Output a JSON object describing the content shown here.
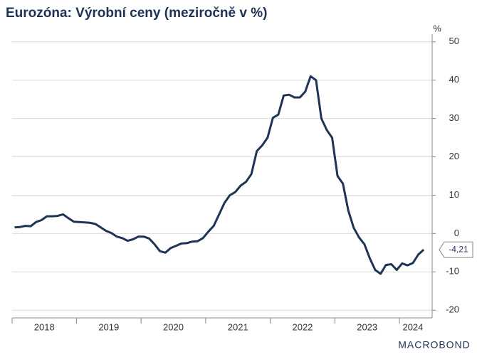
{
  "chart_data": {
    "type": "line",
    "title": "Eurozóna: Výrobní ceny (meziročně v %)",
    "y_unit": "%",
    "source_logo": "MACROBOND",
    "categories": [
      "2018",
      null,
      null,
      null,
      null,
      null,
      null,
      null,
      null,
      null,
      null,
      null,
      "2019",
      null,
      null,
      null,
      null,
      null,
      null,
      null,
      null,
      null,
      null,
      null,
      "2020",
      null,
      null,
      null,
      null,
      null,
      null,
      null,
      null,
      null,
      null,
      null,
      "2021",
      null,
      null,
      null,
      null,
      null,
      null,
      null,
      null,
      null,
      null,
      null,
      "2022",
      null,
      null,
      null,
      null,
      null,
      null,
      null,
      null,
      null,
      null,
      null,
      "2023",
      null,
      null,
      null,
      null,
      null,
      null,
      null,
      null,
      null,
      null,
      null,
      "2024",
      null,
      null,
      null,
      null
    ],
    "series": [
      {
        "name": "Výrobní ceny",
        "color": "#1f3356",
        "values": [
          1.6,
          1.7,
          2.0,
          1.9,
          3.0,
          3.5,
          4.5,
          4.5,
          4.6,
          5.0,
          4.0,
          3.1,
          3.0,
          2.9,
          2.8,
          2.5,
          1.6,
          0.7,
          0.1,
          -0.8,
          -1.2,
          -1.9,
          -1.5,
          -0.8,
          -0.8,
          -1.3,
          -2.8,
          -4.6,
          -5.0,
          -3.8,
          -3.2,
          -2.6,
          -2.5,
          -2.1,
          -2.0,
          -1.2,
          0.5,
          2.0,
          5.0,
          8.0,
          10.0,
          10.8,
          12.5,
          13.5,
          15.5,
          21.5,
          23.0,
          25.0,
          30.2,
          31.0,
          36.0,
          36.2,
          35.5,
          35.5,
          37.0,
          41.0,
          40.0,
          30.0,
          27.0,
          25.0,
          15.0,
          13.0,
          6.0,
          1.5,
          -1.0,
          -2.8,
          -6.5,
          -9.5,
          -10.5,
          -8.2,
          -8.0,
          -9.5,
          -7.8,
          -8.3,
          -7.7,
          -5.5,
          -4.21
        ],
        "value_labels": [
          null,
          null,
          null,
          null,
          null,
          null,
          null,
          null,
          null,
          null,
          null,
          null,
          null,
          null,
          null,
          null,
          null,
          null,
          null,
          null,
          null,
          null,
          null,
          null,
          null,
          null,
          null,
          null,
          null,
          null,
          null,
          null,
          null,
          null,
          null,
          null,
          null,
          null,
          null,
          null,
          null,
          null,
          null,
          null,
          null,
          null,
          null,
          null,
          null,
          null,
          null,
          null,
          null,
          null,
          null,
          null,
          null,
          null,
          null,
          null,
          null,
          null,
          null,
          null,
          null,
          null,
          null,
          null,
          null,
          null,
          null,
          null,
          null,
          null,
          null,
          null,
          "-4,21"
        ]
      }
    ],
    "ylim": [
      -22,
      52
    ],
    "yticks": [
      50,
      40,
      30,
      20,
      10,
      0,
      -10,
      -20
    ],
    "grid": true
  }
}
